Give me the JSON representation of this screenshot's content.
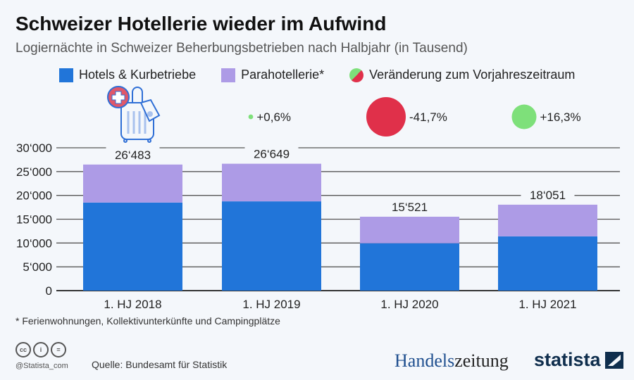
{
  "header": {
    "title": "Schweizer Hotellerie wieder im Aufwind",
    "subtitle": "Logiernächte in Schweizer Beherbungsbetrieben nach Halbjahr (in Tausend)"
  },
  "legend": [
    {
      "label": "Hotels & Kurbetriebe",
      "color": "#2175d9"
    },
    {
      "label": "Parahotellerie*",
      "color": "#ad9be6"
    },
    {
      "label": "Veränderung zum Vorjahreszeitraum"
    }
  ],
  "chart_data": {
    "type": "bar",
    "stacked": true,
    "categories": [
      "1. HJ 2018",
      "1. HJ 2019",
      "1. HJ 2020",
      "1. HJ 2021"
    ],
    "series": [
      {
        "name": "Hotels & Kurbetriebe",
        "values": [
          18500,
          18750,
          9950,
          11400
        ],
        "color": "#2175d9"
      },
      {
        "name": "Parahotellerie*",
        "values": [
          7983,
          7899,
          5571,
          6651
        ],
        "color": "#ad9be6"
      }
    ],
    "totals": [
      26483,
      26649,
      15521,
      18051
    ],
    "total_labels": [
      "26‘483",
      "26‘649",
      "15‘521",
      "18‘051"
    ],
    "yticks": [
      "0",
      "5‘000",
      "10‘000",
      "15‘000",
      "20‘000",
      "25‘000",
      "30‘000"
    ],
    "ylim": [
      0,
      30000
    ],
    "grid": true,
    "changes": [
      {
        "label": "+0,6%",
        "value": 0.6,
        "color": "#7ee07a"
      },
      {
        "label": "-41,7%",
        "value": -41.7,
        "color": "#e0304a"
      },
      {
        "label": "+16,3%",
        "value": 16.3,
        "color": "#7ee07a"
      }
    ]
  },
  "footer": {
    "footnote": "* Ferienwohnungen, Kollektivunterkünfte und Campingplätze",
    "handle": "@Statista_com",
    "source": "Quelle: Bundesamt für Statistik",
    "cc_icons": [
      "cc",
      "i",
      "="
    ],
    "brand1a": "Handels",
    "brand1b": "zeitung",
    "brand2": "statista"
  }
}
